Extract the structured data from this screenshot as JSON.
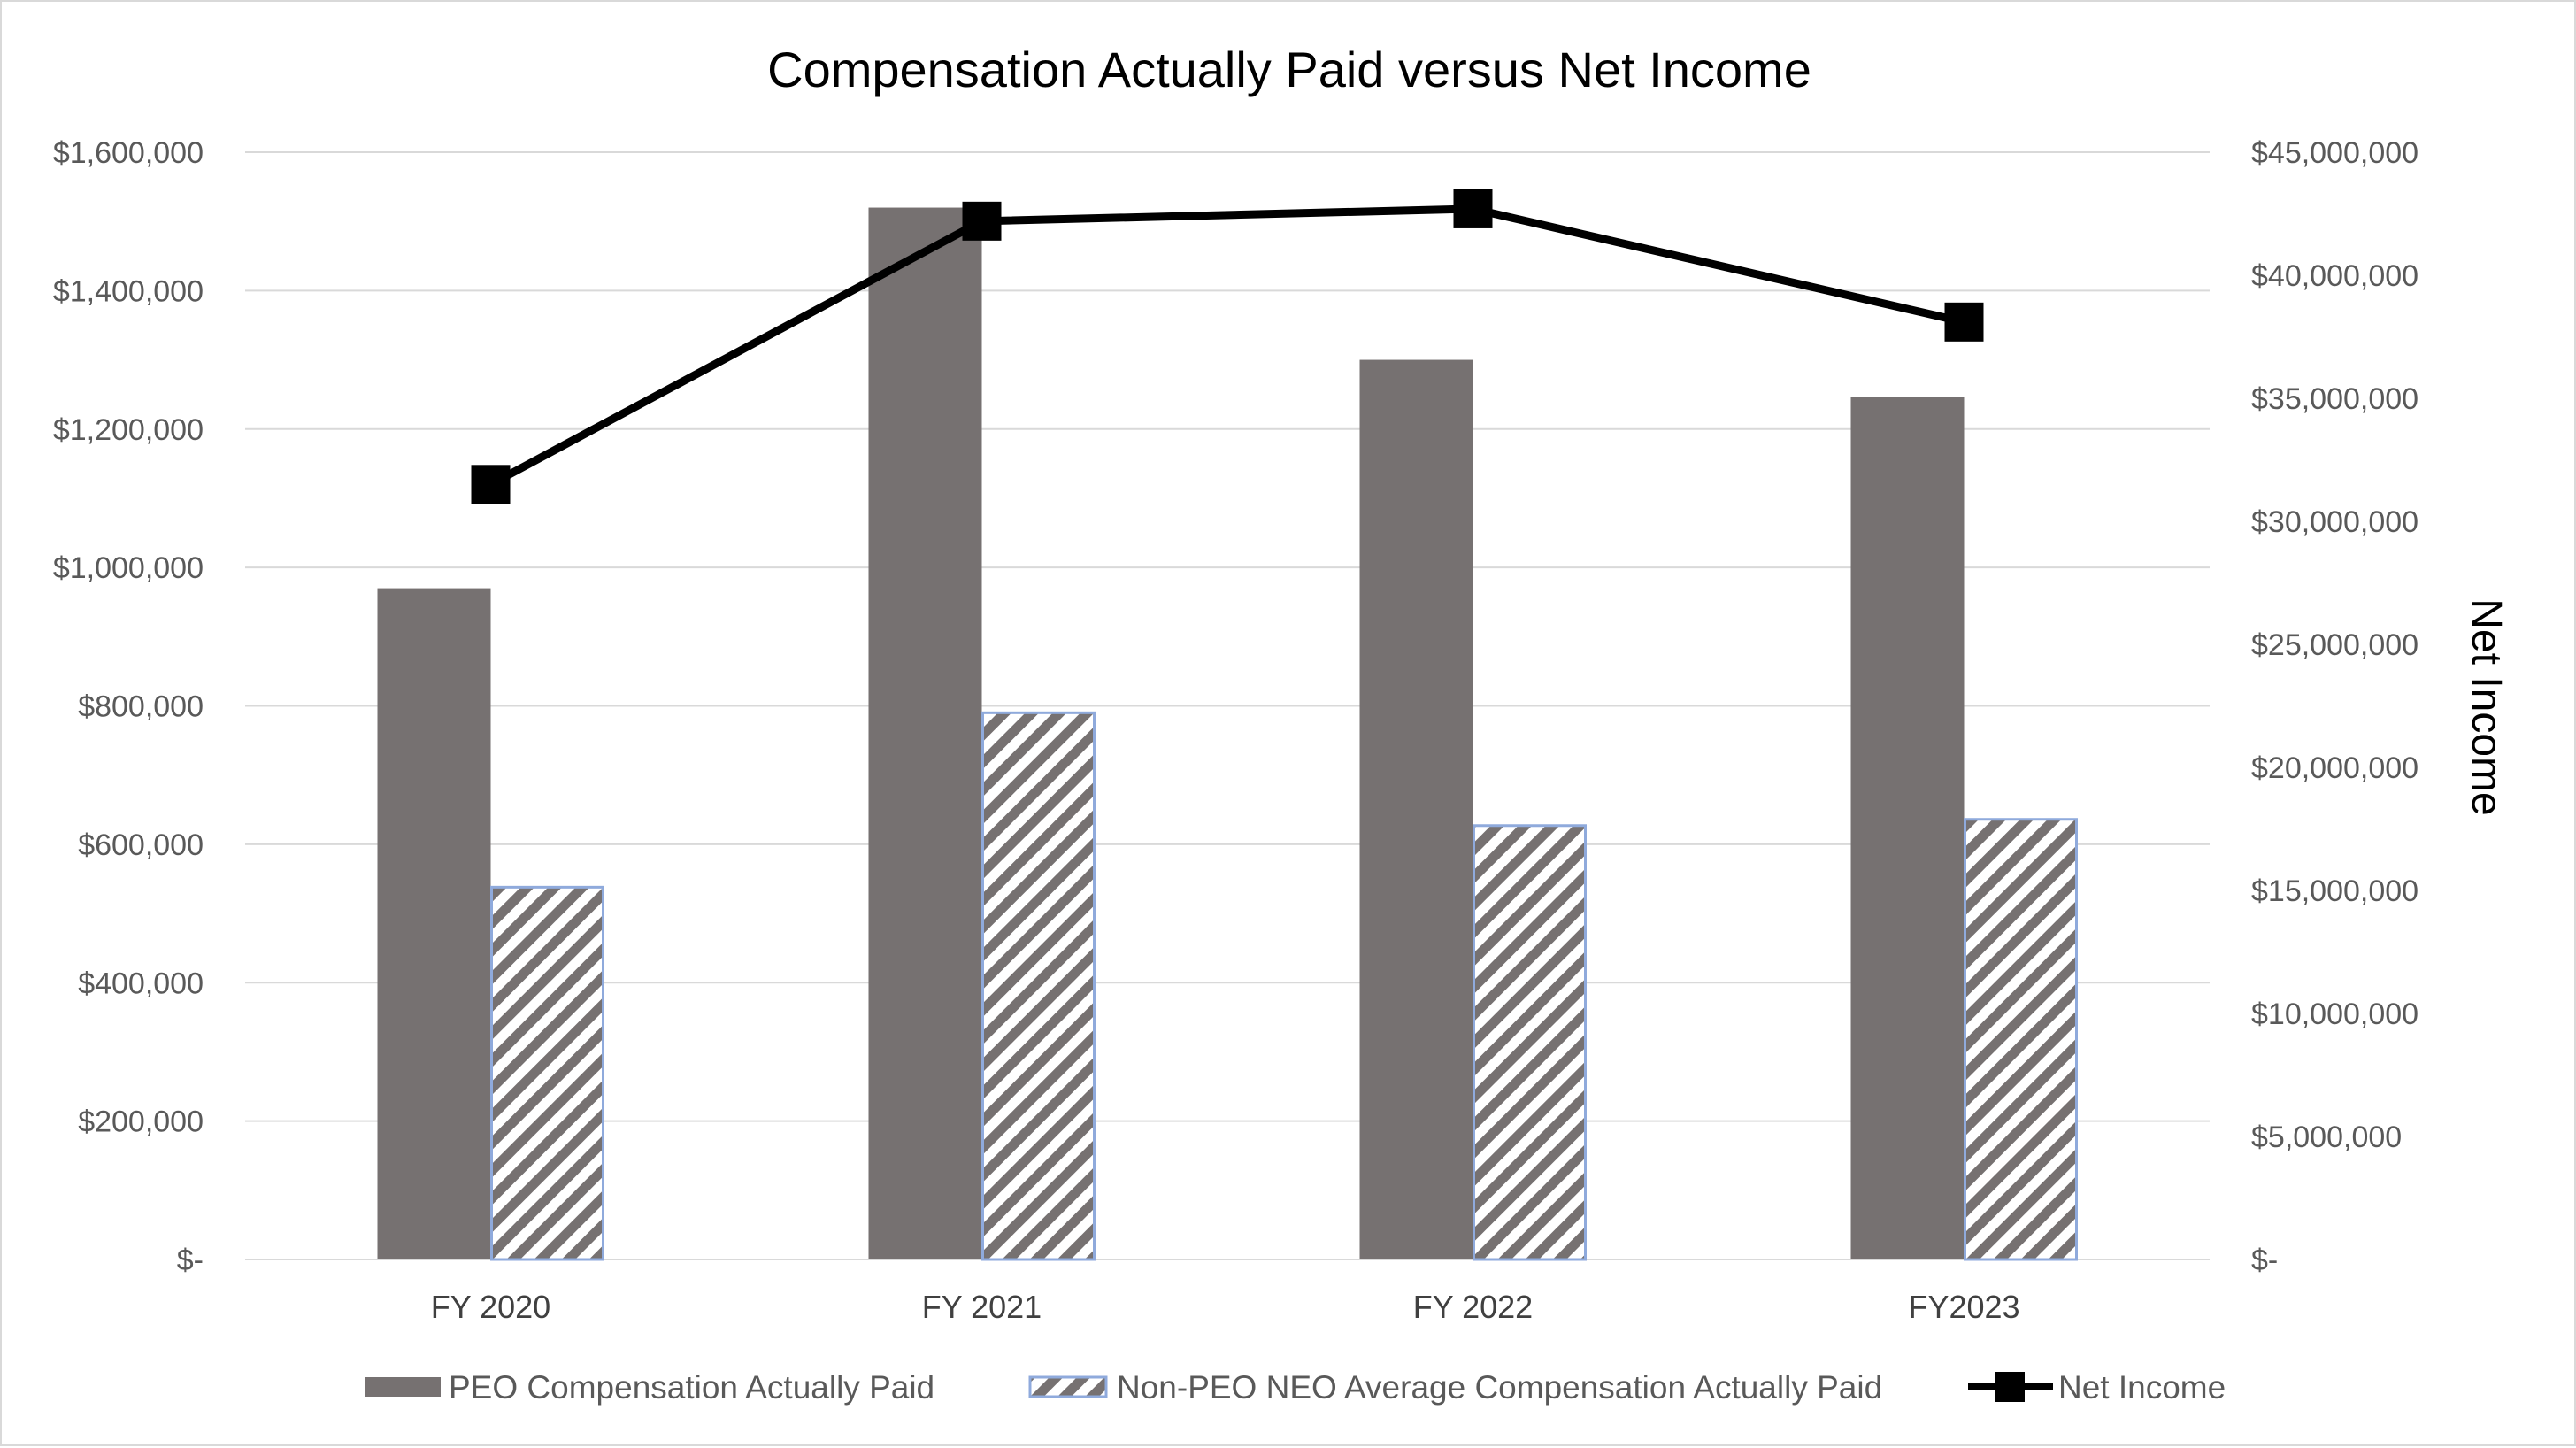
{
  "chart_data": {
    "type": "bar",
    "title": "Compensation Actually Paid versus Net Income",
    "categories": [
      "FY 2020",
      "FY 2021",
      "FY 2022",
      "FY2023"
    ],
    "series": [
      {
        "name": "PEO Compensation Actually Paid",
        "type": "bar",
        "axis": "left",
        "color": "#767171",
        "values": [
          970000,
          1520000,
          1300000,
          1247000
        ]
      },
      {
        "name": "Non-PEO NEO Average Compensation Actually Paid",
        "type": "bar",
        "axis": "left",
        "pattern": "diagonal-hatch",
        "color": "#767171",
        "border_color": "#8faadc",
        "values": [
          538000,
          790000,
          627000,
          636000
        ]
      },
      {
        "name": "Net Income",
        "type": "line",
        "axis": "right",
        "marker": "square",
        "color": "#000000",
        "values": [
          31500000,
          42200000,
          42700000,
          38100000
        ]
      }
    ],
    "y_left": {
      "min": 0,
      "max": 1600000,
      "ticks": [
        "$-",
        "$200,000",
        "$400,000",
        "$600,000",
        "$800,000",
        "$1,000,000",
        "$1,200,000",
        "$1,400,000",
        "$1,600,000"
      ]
    },
    "y_right": {
      "label": "Net Income",
      "min": 0,
      "max": 45000000,
      "ticks": [
        "$-",
        "$5,000,000",
        "$10,000,000",
        "$15,000,000",
        "$20,000,000",
        "$25,000,000",
        "$30,000,000",
        "$35,000,000",
        "$40,000,000",
        "$45,000,000"
      ]
    },
    "grid": true,
    "legend_position": "bottom"
  }
}
